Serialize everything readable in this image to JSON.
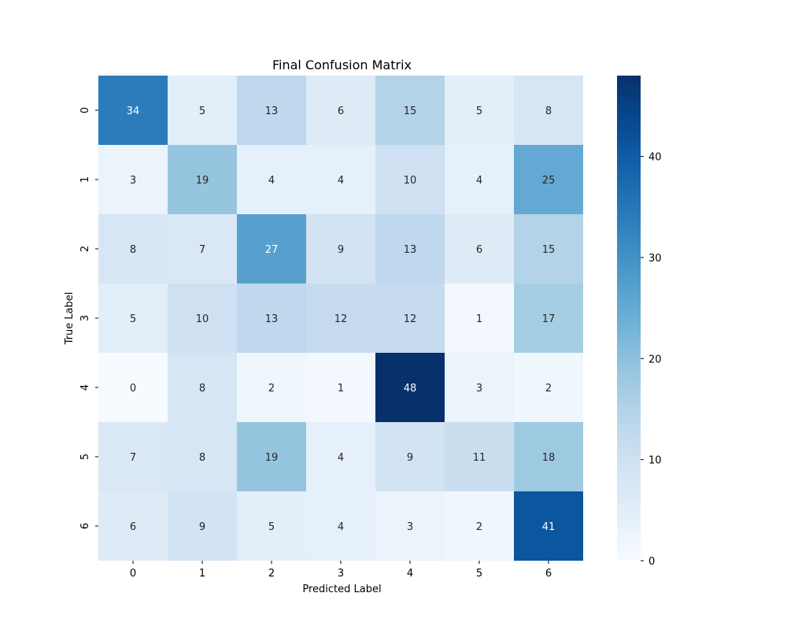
{
  "chart_data": {
    "type": "heatmap",
    "title": "Final Confusion Matrix",
    "xlabel": "Predicted Label",
    "ylabel": "True Label",
    "x_categories": [
      "0",
      "1",
      "2",
      "3",
      "4",
      "5",
      "6"
    ],
    "y_categories": [
      "0",
      "1",
      "2",
      "3",
      "4",
      "5",
      "6"
    ],
    "values": [
      [
        34,
        5,
        13,
        6,
        15,
        5,
        8
      ],
      [
        3,
        19,
        4,
        4,
        10,
        4,
        25
      ],
      [
        8,
        7,
        27,
        9,
        13,
        6,
        15
      ],
      [
        5,
        10,
        13,
        12,
        12,
        1,
        17
      ],
      [
        0,
        8,
        2,
        1,
        48,
        3,
        2
      ],
      [
        7,
        8,
        19,
        4,
        9,
        11,
        18
      ],
      [
        6,
        9,
        5,
        4,
        3,
        2,
        41
      ]
    ],
    "colormap": "Blues",
    "colorbar": {
      "range": [
        0,
        48
      ],
      "ticks": [
        0,
        10,
        20,
        30,
        40
      ]
    }
  }
}
